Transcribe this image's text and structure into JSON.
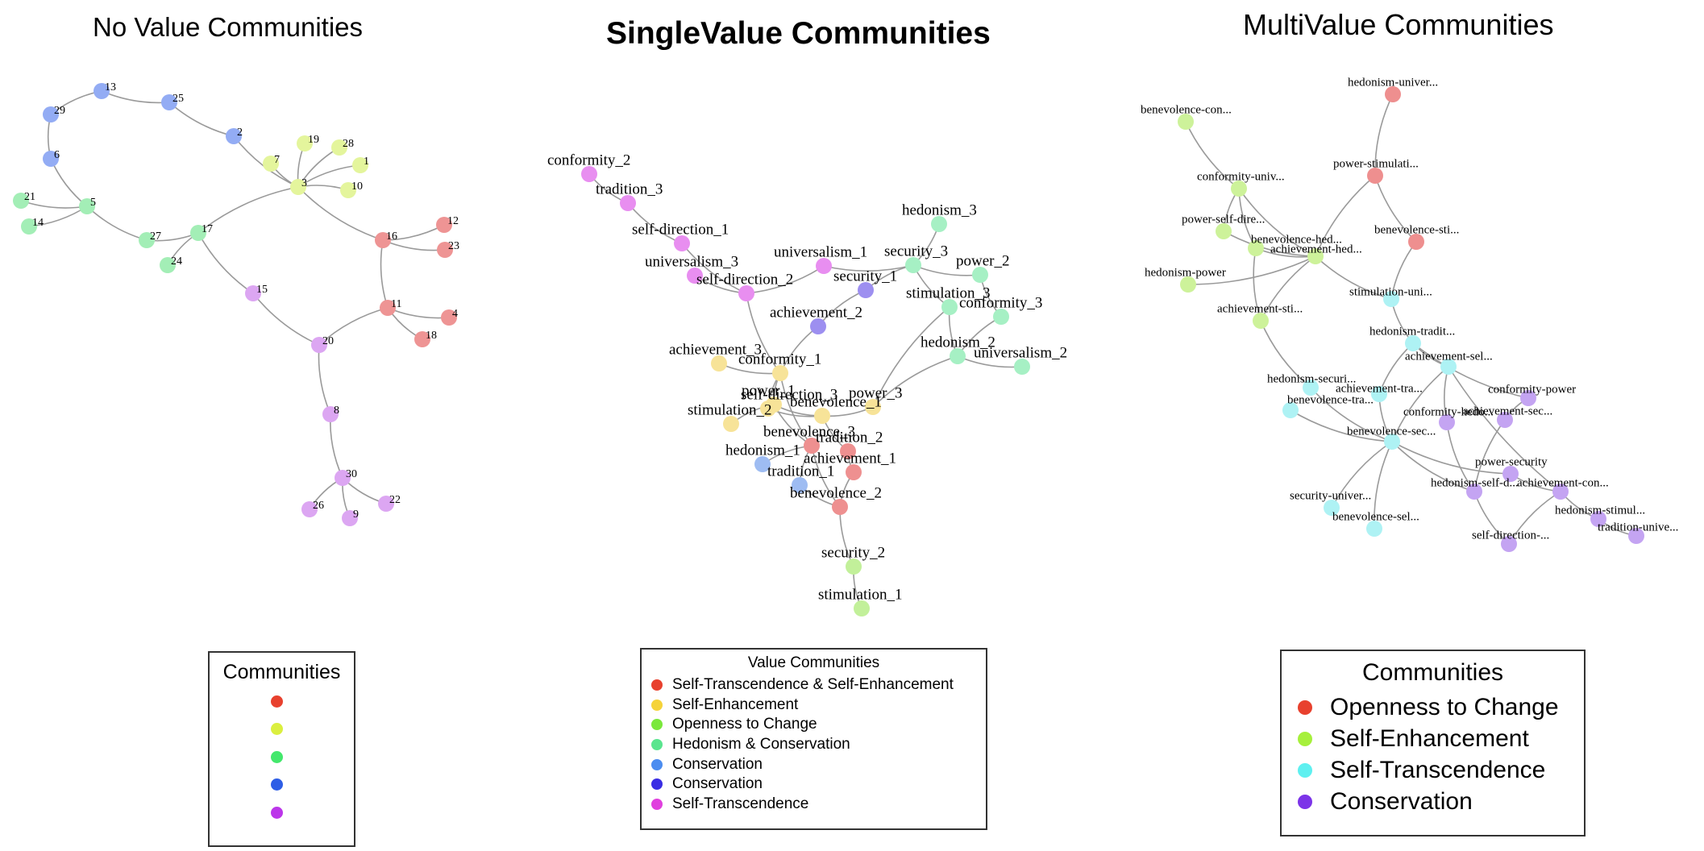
{
  "panels": {
    "left": {
      "title": "No Value Communities"
    },
    "middle": {
      "title": "SingleValue Communities"
    },
    "right": {
      "title": "MultiValue Communities"
    }
  },
  "legends": {
    "left": {
      "title": "Communities",
      "items": [
        {
          "label": "",
          "color": "#e8412e"
        },
        {
          "label": "",
          "color": "#dbef3f"
        },
        {
          "label": "",
          "color": "#43e86c"
        },
        {
          "label": "",
          "color": "#2e5ee6"
        },
        {
          "label": "",
          "color": "#bc36ea"
        }
      ]
    },
    "middle": {
      "title": "Value Communities",
      "items": [
        {
          "label": "Self-Transcendence & Self-Enhancement",
          "color": "#e8412e"
        },
        {
          "label": "Self-Enhancement",
          "color": "#f5d33a"
        },
        {
          "label": "Openness to Change",
          "color": "#7ae83c"
        },
        {
          "label": "Hedonism & Conservation",
          "color": "#5ae58e"
        },
        {
          "label": "Conservation",
          "color": "#4c8df0"
        },
        {
          "label": "Conservation",
          "color": "#3a2de4"
        },
        {
          "label": "Self-Transcendence",
          "color": "#e040de"
        }
      ]
    },
    "right": {
      "title": "Communities",
      "items": [
        {
          "label": "Openness to Change",
          "color": "#e8412e"
        },
        {
          "label": "Self-Enhancement",
          "color": "#a6f03c"
        },
        {
          "label": "Self-Transcendence",
          "color": "#5ef0f0"
        },
        {
          "label": "Conservation",
          "color": "#7c34e8"
        }
      ]
    }
  },
  "graphs": {
    "left": {
      "nodes": [
        {
          "label": "13",
          "color": "#93acf4"
        },
        {
          "label": "25",
          "color": "#93acf4"
        },
        {
          "label": "29",
          "color": "#93acf4"
        },
        {
          "label": "6",
          "color": "#93acf4"
        },
        {
          "label": "2",
          "color": "#93acf4"
        },
        {
          "label": "19",
          "color": "#e4f59c"
        },
        {
          "label": "28",
          "color": "#e4f59c"
        },
        {
          "label": "7",
          "color": "#e4f59c"
        },
        {
          "label": "1",
          "color": "#e4f59c"
        },
        {
          "label": "3",
          "color": "#e4f59c"
        },
        {
          "label": "10",
          "color": "#e4f59c"
        },
        {
          "label": "21",
          "color": "#a3eeb6"
        },
        {
          "label": "5",
          "color": "#a3eeb6"
        },
        {
          "label": "14",
          "color": "#a3eeb6"
        },
        {
          "label": "27",
          "color": "#a3eeb6"
        },
        {
          "label": "17",
          "color": "#a3eeb6"
        },
        {
          "label": "24",
          "color": "#a3eeb6"
        },
        {
          "label": "16",
          "color": "#ee9494"
        },
        {
          "label": "12",
          "color": "#ee9494"
        },
        {
          "label": "23",
          "color": "#ee9494"
        },
        {
          "label": "11",
          "color": "#ee9494"
        },
        {
          "label": "4",
          "color": "#ee9494"
        },
        {
          "label": "18",
          "color": "#ee9494"
        },
        {
          "label": "15",
          "color": "#dca6f2"
        },
        {
          "label": "20",
          "color": "#dca6f2"
        },
        {
          "label": "8",
          "color": "#dca6f2"
        },
        {
          "label": "30",
          "color": "#dca6f2"
        },
        {
          "label": "26",
          "color": "#dca6f2"
        },
        {
          "label": "9",
          "color": "#dca6f2"
        },
        {
          "label": "22",
          "color": "#dca6f2"
        }
      ],
      "edges": [
        [
          "13",
          "25"
        ],
        [
          "13",
          "29"
        ],
        [
          "29",
          "6"
        ],
        [
          "6",
          "5"
        ],
        [
          "25",
          "2"
        ],
        [
          "2",
          "3"
        ],
        [
          "7",
          "3"
        ],
        [
          "19",
          "3"
        ],
        [
          "28",
          "3"
        ],
        [
          "1",
          "3"
        ],
        [
          "10",
          "3"
        ],
        [
          "3",
          "17"
        ],
        [
          "3",
          "16"
        ],
        [
          "21",
          "5"
        ],
        [
          "14",
          "5"
        ],
        [
          "5",
          "27"
        ],
        [
          "27",
          "17"
        ],
        [
          "17",
          "24"
        ],
        [
          "17",
          "15"
        ],
        [
          "16",
          "12"
        ],
        [
          "16",
          "23"
        ],
        [
          "16",
          "11"
        ],
        [
          "11",
          "4"
        ],
        [
          "11",
          "18"
        ],
        [
          "11",
          "20"
        ],
        [
          "15",
          "20"
        ],
        [
          "20",
          "8"
        ],
        [
          "8",
          "30"
        ],
        [
          "30",
          "26"
        ],
        [
          "30",
          "9"
        ],
        [
          "30",
          "22"
        ]
      ]
    },
    "middle": {
      "nodes": [
        {
          "label": "conformity_2",
          "color": "#e88ef0"
        },
        {
          "label": "tradition_3",
          "color": "#e88ef0"
        },
        {
          "label": "self-direction_1",
          "color": "#e88ef0"
        },
        {
          "label": "universalism_3",
          "color": "#e88ef0"
        },
        {
          "label": "self-direction_2",
          "color": "#e88ef0"
        },
        {
          "label": "universalism_1",
          "color": "#e88ef0"
        },
        {
          "label": "hedonism_3",
          "color": "#a6f0c4"
        },
        {
          "label": "security_3",
          "color": "#a6f0c4"
        },
        {
          "label": "power_2",
          "color": "#a6f0c4"
        },
        {
          "label": "stimulation_3",
          "color": "#a6f0c4"
        },
        {
          "label": "conformity_3",
          "color": "#a6f0c4"
        },
        {
          "label": "hedonism_2",
          "color": "#a6f0c4"
        },
        {
          "label": "universalism_2",
          "color": "#a6f0c4"
        },
        {
          "label": "security_1",
          "color": "#9d8ff0"
        },
        {
          "label": "achievement_2",
          "color": "#9d8ff0"
        },
        {
          "label": "achievement_3",
          "color": "#f7e398"
        },
        {
          "label": "conformity_1",
          "color": "#f7e398"
        },
        {
          "label": "power_1",
          "color": "#f7e398"
        },
        {
          "label": "power_3",
          "color": "#f7e398"
        },
        {
          "label": "stimulation_2",
          "color": "#f7e398"
        },
        {
          "label": "self-direction_3",
          "color": "#f7e398"
        },
        {
          "label": "benevolence_1",
          "color": "#f7e398"
        },
        {
          "label": "benevolence_3",
          "color": "#ee9090"
        },
        {
          "label": "tradition_2",
          "color": "#ee9090"
        },
        {
          "label": "achievement_1",
          "color": "#ee9090"
        },
        {
          "label": "benevolence_2",
          "color": "#ee9090"
        },
        {
          "label": "hedonism_1",
          "color": "#9ebcf2"
        },
        {
          "label": "tradition_1",
          "color": "#9ebcf2"
        },
        {
          "label": "security_2",
          "color": "#c2f09a"
        },
        {
          "label": "stimulation_1",
          "color": "#c2f09a"
        }
      ],
      "edges": [
        [
          "conformity_2",
          "tradition_3"
        ],
        [
          "tradition_3",
          "self-direction_1"
        ],
        [
          "self-direction_1",
          "self-direction_2"
        ],
        [
          "universalism_3",
          "self-direction_2"
        ],
        [
          "self-direction_2",
          "universalism_1"
        ],
        [
          "universalism_1",
          "security_3"
        ],
        [
          "security_3",
          "hedonism_3"
        ],
        [
          "security_3",
          "power_2"
        ],
        [
          "security_3",
          "stimulation_3"
        ],
        [
          "security_3",
          "security_1"
        ],
        [
          "power_2",
          "conformity_3"
        ],
        [
          "stimulation_3",
          "hedonism_2"
        ],
        [
          "conformity_3",
          "hedonism_2"
        ],
        [
          "hedonism_2",
          "universalism_2"
        ],
        [
          "hedonism_2",
          "power_3"
        ],
        [
          "security_1",
          "achievement_2"
        ],
        [
          "achievement_2",
          "conformity_1"
        ],
        [
          "self-direction_2",
          "conformity_1"
        ],
        [
          "achievement_3",
          "conformity_1"
        ],
        [
          "conformity_1",
          "power_1"
        ],
        [
          "conformity_1",
          "self-direction_3"
        ],
        [
          "conformity_1",
          "benevolence_3"
        ],
        [
          "power_1",
          "stimulation_2"
        ],
        [
          "power_1",
          "benevolence_1"
        ],
        [
          "self-direction_3",
          "benevolence_1"
        ],
        [
          "benevolence_1",
          "power_3"
        ],
        [
          "benevolence_1",
          "tradition_2"
        ],
        [
          "power_1",
          "benevolence_3"
        ],
        [
          "benevolence_3",
          "hedonism_1"
        ],
        [
          "benevolence_3",
          "tradition_1"
        ],
        [
          "tradition_2",
          "achievement_1"
        ],
        [
          "achievement_1",
          "benevolence_2"
        ],
        [
          "tradition_1",
          "benevolence_2"
        ],
        [
          "benevolence_3",
          "benevolence_2"
        ],
        [
          "benevolence_2",
          "security_2"
        ],
        [
          "security_2",
          "stimulation_1"
        ],
        [
          "stimulation_3",
          "power_3"
        ]
      ]
    },
    "right": {
      "nodes": [
        {
          "label": "hedonism-univer...",
          "color": "#ee8f8f"
        },
        {
          "label": "power-stimulati...",
          "color": "#ee8f8f"
        },
        {
          "label": "benevolence-sti...",
          "color": "#ee8f8f"
        },
        {
          "label": "benevolence-con...",
          "color": "#cdf29a"
        },
        {
          "label": "conformity-univ...",
          "color": "#cdf29a"
        },
        {
          "label": "power-self-dire...",
          "color": "#cdf29a"
        },
        {
          "label": "benevolence-hed...",
          "color": "#cdf29a"
        },
        {
          "label": "achievement-hed...",
          "color": "#cdf29a"
        },
        {
          "label": "hedonism-power",
          "color": "#cdf29a"
        },
        {
          "label": "achievement-sti...",
          "color": "#cdf29a"
        },
        {
          "label": "stimulation-uni...",
          "color": "#aef2f4"
        },
        {
          "label": "hedonism-tradit...",
          "color": "#aef2f4"
        },
        {
          "label": "achievement-sel...",
          "color": "#aef2f4"
        },
        {
          "label": "hedonism-securi...",
          "color": "#aef2f4"
        },
        {
          "label": "achievement-tra...",
          "color": "#aef2f4"
        },
        {
          "label": "benevolence-tra...",
          "color": "#aef2f4"
        },
        {
          "label": "benevolence-sec...",
          "color": "#aef2f4"
        },
        {
          "label": "security-univer...",
          "color": "#aef2f4"
        },
        {
          "label": "benevolence-sel...",
          "color": "#aef2f4"
        },
        {
          "label": "conformity-power",
          "color": "#c4a4f2"
        },
        {
          "label": "conformity-hedo...",
          "color": "#c4a4f2"
        },
        {
          "label": "achievement-sec...",
          "color": "#c4a4f2"
        },
        {
          "label": "power-security",
          "color": "#c4a4f2"
        },
        {
          "label": "hedonism-self-d...",
          "color": "#c4a4f2"
        },
        {
          "label": "achievement-con...",
          "color": "#c4a4f2"
        },
        {
          "label": "hedonism-stimul...",
          "color": "#c4a4f2"
        },
        {
          "label": "self-direction-...",
          "color": "#c4a4f2"
        },
        {
          "label": "tradition-unive...",
          "color": "#c4a4f2"
        }
      ],
      "edges": [
        [
          "hedonism-univer...",
          "power-stimulati..."
        ],
        [
          "power-stimulati...",
          "benevolence-sti..."
        ],
        [
          "power-stimulati...",
          "achievement-hed..."
        ],
        [
          "benevolence-con...",
          "conformity-univ..."
        ],
        [
          "conformity-univ...",
          "power-self-dire..."
        ],
        [
          "conformity-univ...",
          "benevolence-hed..."
        ],
        [
          "conformity-univ...",
          "achievement-hed..."
        ],
        [
          "benevolence-hed...",
          "achievement-hed..."
        ],
        [
          "power-self-dire...",
          "achievement-hed..."
        ],
        [
          "hedonism-power",
          "achievement-hed..."
        ],
        [
          "benevolence-hed...",
          "achievement-sti..."
        ],
        [
          "achievement-hed...",
          "achievement-sti..."
        ],
        [
          "achievement-hed...",
          "stimulation-uni..."
        ],
        [
          "benevolence-sti...",
          "stimulation-uni..."
        ],
        [
          "stimulation-uni...",
          "hedonism-tradit..."
        ],
        [
          "hedonism-tradit...",
          "achievement-sel..."
        ],
        [
          "achievement-sti...",
          "hedonism-securi..."
        ],
        [
          "hedonism-securi...",
          "benevolence-sec..."
        ],
        [
          "hedonism-tradit...",
          "achievement-tra..."
        ],
        [
          "achievement-tra...",
          "benevolence-sec..."
        ],
        [
          "benevolence-tra...",
          "benevolence-sec..."
        ],
        [
          "achievement-sel...",
          "benevolence-sec..."
        ],
        [
          "achievement-sel...",
          "conformity-hedo..."
        ],
        [
          "conformity-power",
          "achievement-sec..."
        ],
        [
          "achievement-sec...",
          "hedonism-self-d..."
        ],
        [
          "benevolence-sec...",
          "hedonism-self-d..."
        ],
        [
          "benevolence-sec...",
          "security-univer..."
        ],
        [
          "benevolence-sec...",
          "benevolence-sel..."
        ],
        [
          "benevolence-sec...",
          "power-security"
        ],
        [
          "power-security",
          "achievement-con..."
        ],
        [
          "achievement-con...",
          "hedonism-stimul..."
        ],
        [
          "hedonism-stimul...",
          "tradition-unive..."
        ],
        [
          "achievement-con...",
          "self-direction-..."
        ],
        [
          "hedonism-self-d...",
          "self-direction-..."
        ],
        [
          "conformity-hedo...",
          "hedonism-self-d..."
        ],
        [
          "hedonism-tradit...",
          "conformity-power"
        ],
        [
          "achievement-sel...",
          "achievement-con..."
        ]
      ]
    }
  }
}
